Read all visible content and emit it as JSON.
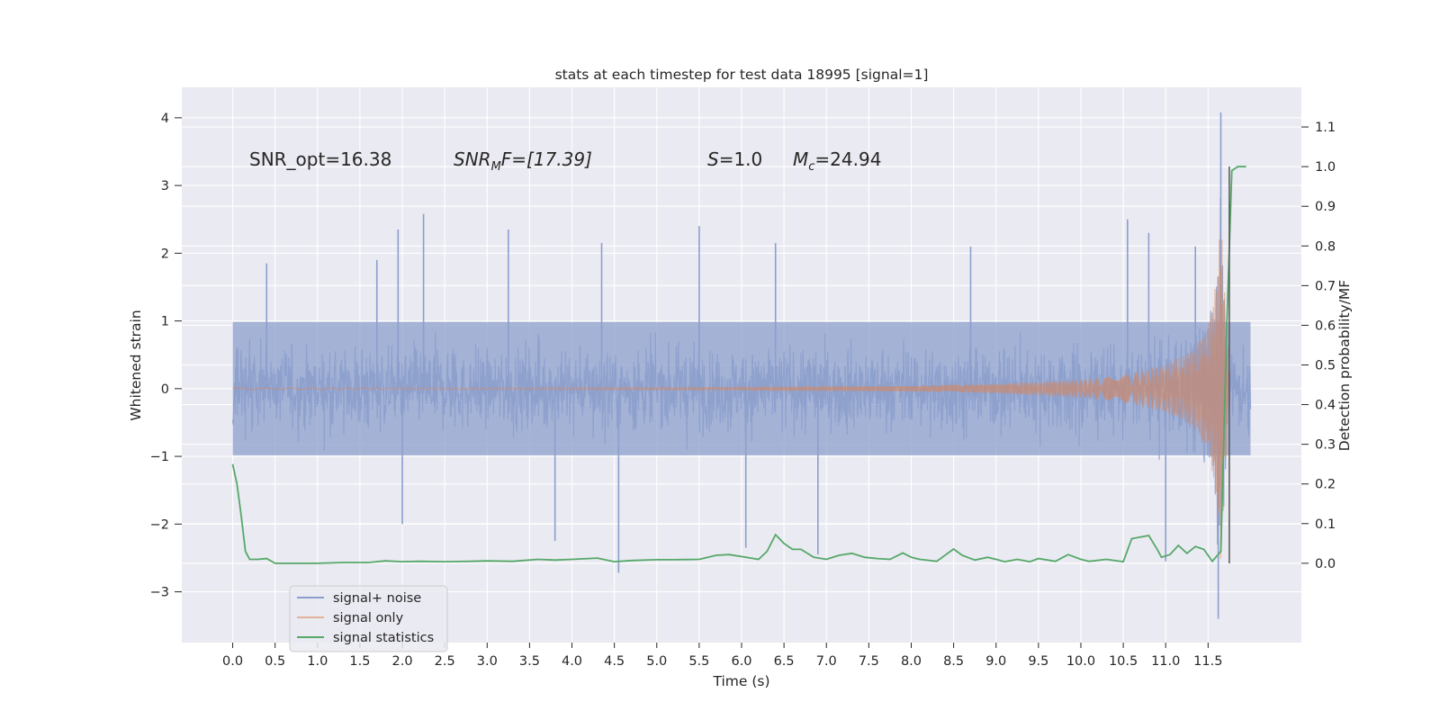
{
  "chart_data": {
    "type": "line",
    "title": "stats at each timestep for test data 18995 [signal=1]",
    "xlabel": "Time (s)",
    "ylabel": "Whitened strain",
    "ylabel_right": "Detection probability/MF",
    "xlim": [
      -0.6,
      12.6
    ],
    "ylim": [
      -3.75,
      4.45
    ],
    "ylim_right": [
      -0.2,
      1.2
    ],
    "x_ticks": [
      "0.0",
      "0.5",
      "1.0",
      "1.5",
      "2.0",
      "2.5",
      "3.0",
      "3.5",
      "4.0",
      "4.5",
      "5.0",
      "5.5",
      "6.0",
      "6.5",
      "7.0",
      "7.5",
      "8.0",
      "8.5",
      "9.0",
      "9.5",
      "10.0",
      "10.5",
      "11.0",
      "11.5"
    ],
    "y_ticks": [
      "−3",
      "−2",
      "−1",
      "0",
      "1",
      "2",
      "3",
      "4"
    ],
    "y_ticks_right": [
      "0.0",
      "0.1",
      "0.2",
      "0.3",
      "0.4",
      "0.5",
      "0.6",
      "0.7",
      "0.8",
      "0.9",
      "1.0",
      "1.1"
    ],
    "grid": true,
    "legend_position": "lower-left",
    "annotations": {
      "snr_opt": "SNR_opt=16.38",
      "snr_mf_main": "SNR",
      "snr_mf_sub": "M",
      "snr_mf_rest": "F=[17.39]",
      "s_var": "S",
      "s_rest": "=1.0",
      "mc_var": "M",
      "mc_sub": "c",
      "mc_rest": "=24.94"
    },
    "colors": {
      "signal_noise": "#8c9fcc",
      "signal_only": "#dd8452",
      "signal_statistics": "#55a868",
      "plot_background": "#eaeaf2",
      "grid": "#ffffff"
    },
    "series": [
      {
        "name": "signal+ noise",
        "axis": "left",
        "description_values": {
          "t_range": [
            0.0,
            12.0
          ],
          "typical_envelope": [
            -1.2,
            1.2
          ],
          "max": 4.08,
          "min": -3.4,
          "spikes": [
            {
              "x": 0.4,
              "y": 1.85
            },
            {
              "x": 1.7,
              "y": 1.9
            },
            {
              "x": 1.95,
              "y": 2.35
            },
            {
              "x": 2.25,
              "y": 2.58
            },
            {
              "x": 2.0,
              "y": -2.0
            },
            {
              "x": 3.25,
              "y": 2.35
            },
            {
              "x": 3.8,
              "y": -2.25
            },
            {
              "x": 4.35,
              "y": 2.15
            },
            {
              "x": 4.55,
              "y": -2.72
            },
            {
              "x": 5.5,
              "y": 2.4
            },
            {
              "x": 6.05,
              "y": -2.35
            },
            {
              "x": 6.4,
              "y": 2.15
            },
            {
              "x": 6.9,
              "y": -2.45
            },
            {
              "x": 8.7,
              "y": 2.1
            },
            {
              "x": 10.55,
              "y": 2.5
            },
            {
              "x": 10.8,
              "y": 2.3
            },
            {
              "x": 11.35,
              "y": 2.1
            },
            {
              "x": 11.65,
              "y": 4.08
            },
            {
              "x": 11.62,
              "y": -3.4
            },
            {
              "x": 11.0,
              "y": -2.55
            }
          ]
        }
      },
      {
        "name": "signal only",
        "axis": "left",
        "description_values": {
          "t_range": [
            0.0,
            11.75
          ],
          "amplitude": [
            [
              0.0,
              0.01
            ],
            [
              6.0,
              0.02
            ],
            [
              8.0,
              0.04
            ],
            [
              9.0,
              0.07
            ],
            [
              10.0,
              0.13
            ],
            [
              10.5,
              0.2
            ],
            [
              11.0,
              0.35
            ],
            [
              11.3,
              0.55
            ],
            [
              11.5,
              0.9
            ],
            [
              11.6,
              1.6
            ],
            [
              11.65,
              2.55
            ],
            [
              11.7,
              1.3
            ],
            [
              11.75,
              0.0
            ]
          ]
        }
      },
      {
        "name": "signal statistics",
        "axis": "right",
        "x": [
          0.0,
          0.05,
          0.1,
          0.15,
          0.2,
          0.3,
          0.4,
          0.5,
          0.7,
          1.0,
          1.3,
          1.6,
          1.8,
          2.0,
          2.2,
          2.5,
          2.8,
          3.0,
          3.3,
          3.6,
          3.8,
          4.0,
          4.3,
          4.5,
          4.7,
          5.0,
          5.2,
          5.5,
          5.7,
          5.85,
          6.0,
          6.2,
          6.3,
          6.4,
          6.5,
          6.6,
          6.7,
          6.85,
          7.0,
          7.15,
          7.3,
          7.45,
          7.6,
          7.75,
          7.9,
          8.0,
          8.1,
          8.3,
          8.5,
          8.6,
          8.75,
          8.9,
          9.0,
          9.1,
          9.25,
          9.4,
          9.5,
          9.7,
          9.85,
          10.0,
          10.1,
          10.3,
          10.5,
          10.6,
          10.8,
          10.9,
          10.95,
          11.05,
          11.15,
          11.25,
          11.35,
          11.45,
          11.55,
          11.65,
          11.72,
          11.78,
          11.85,
          11.95
        ],
        "y": [
          0.25,
          0.2,
          0.12,
          0.03,
          0.01,
          0.01,
          0.012,
          0.0,
          0.0,
          0.0,
          0.002,
          0.002,
          0.006,
          0.004,
          0.005,
          0.004,
          0.005,
          0.006,
          0.005,
          0.01,
          0.008,
          0.01,
          0.013,
          0.004,
          0.007,
          0.009,
          0.009,
          0.01,
          0.02,
          0.022,
          0.017,
          0.01,
          0.03,
          0.072,
          0.05,
          0.035,
          0.035,
          0.015,
          0.01,
          0.02,
          0.025,
          0.015,
          0.012,
          0.01,
          0.026,
          0.015,
          0.01,
          0.005,
          0.036,
          0.02,
          0.008,
          0.015,
          0.01,
          0.004,
          0.01,
          0.004,
          0.012,
          0.005,
          0.022,
          0.01,
          0.005,
          0.01,
          0.004,
          0.062,
          0.07,
          0.035,
          0.015,
          0.022,
          0.045,
          0.025,
          0.042,
          0.035,
          0.005,
          0.03,
          0.6,
          0.99,
          1.0,
          1.0
        ]
      }
    ]
  },
  "legend": {
    "items": [
      "signal+ noise",
      "signal only",
      "signal statistics"
    ]
  }
}
